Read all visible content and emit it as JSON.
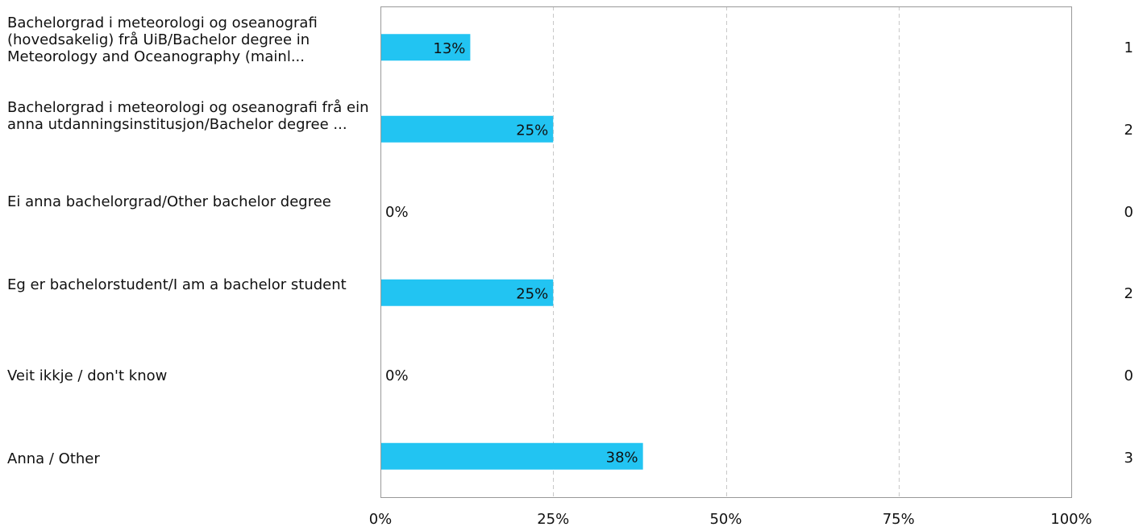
{
  "chart_data": {
    "type": "bar",
    "orientation": "horizontal",
    "categories": [
      "Bachelorgrad i meteorologi og oseanografi (hovedsakelig) frå UiB/Bachelor degree in Meteorology and Oceanography (mainl...",
      "Bachelorgrad i meteorologi og oseanografi frå ein anna utdanningsinstitusjon/Bachelor degree ...",
      "Ei anna bachelorgrad/Other bachelor degree",
      "Eg er bachelorstudent/I am a bachelor student",
      "Veit ikkje / don't know",
      "Anna / Other"
    ],
    "values": [
      13,
      25,
      0,
      25,
      0,
      38
    ],
    "value_labels": [
      "13%",
      "25%",
      "0%",
      "25%",
      "0%",
      "38%"
    ],
    "counts": [
      "1",
      "2",
      "0",
      "2",
      "0",
      "3"
    ],
    "xlim": [
      0,
      100
    ],
    "x_ticks": [
      0,
      25,
      50,
      75,
      100
    ],
    "x_tick_labels": [
      "0%",
      "25%",
      "50%",
      "75%",
      "100%"
    ],
    "grid": true,
    "bar_color": "#22c4f2",
    "grid_color": "#c8c8c8",
    "axis_color": "#999999"
  }
}
